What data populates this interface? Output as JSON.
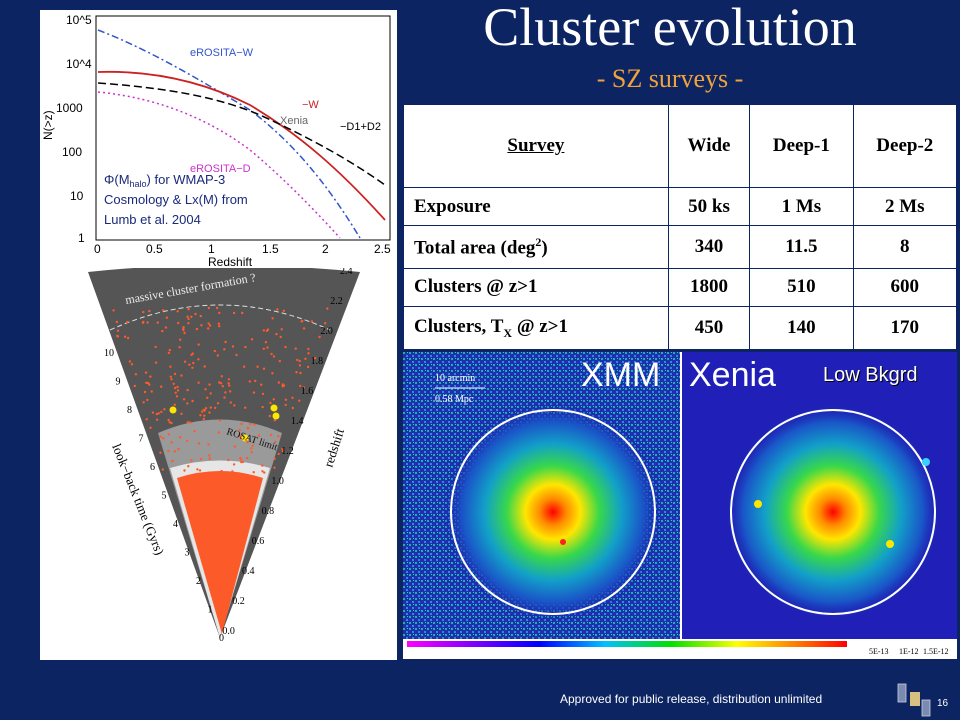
{
  "slide": {
    "title": "Cluster evolution",
    "subtitle": "- SZ surveys -",
    "footer": "Approved for public release, distribution unlimited",
    "page_number": "16"
  },
  "plot": {
    "xlabel": "Redshift",
    "ylabel": "N(>z)",
    "x_ticks": [
      "0",
      "0.5",
      "1",
      "1.5",
      "2",
      "2.5"
    ],
    "y_ticks": [
      "10^5",
      "10^4",
      "1000",
      "100",
      "10",
      "1"
    ],
    "curve_labels": [
      "eROSITA−W",
      "−W",
      "Xenia",
      "−D1+D2",
      "eROSITA−D"
    ],
    "note_line1": "Φ(M",
    "note_sub": "halo",
    "note_line1b": ") for WMAP-3",
    "note_line2": "Cosmology & Lx(M) from",
    "note_line3": "Lumb et al.  2004"
  },
  "cone": {
    "arc_text": "massive  cluster  formation ?",
    "rosat": "ROSAT limit",
    "left_axis_label": "look−back time (Gyrs)",
    "right_axis_label": "redshift",
    "left_ticks": [
      "10",
      "9",
      "8",
      "7",
      "6",
      "5",
      "4",
      "3",
      "2",
      "1",
      "0"
    ],
    "right_ticks": [
      "2.4",
      "2.2",
      "2.0",
      "1.8",
      "1.6",
      "1.4",
      "1.2",
      "1.0",
      "0.8",
      "0.6",
      "0.4",
      "0.2",
      "0.0"
    ]
  },
  "table": {
    "headers": [
      "Survey",
      "Wide",
      "Deep-1",
      "Deep-2"
    ],
    "rows": [
      {
        "label": "Exposure",
        "values": [
          "50 ks",
          "1 Ms",
          "2 Ms"
        ]
      },
      {
        "label_pre": "Total area (deg",
        "label_sup": "2",
        "label_post": ")",
        "values": [
          "340",
          "11.5",
          "8"
        ]
      },
      {
        "label": "Clusters @ z>1",
        "values": [
          "1800",
          "510",
          "600"
        ]
      },
      {
        "label_pre": "Clusters, T",
        "label_sub": "X",
        "label_post": " @ z>1",
        "values": [
          "450",
          "140",
          "170"
        ]
      }
    ]
  },
  "images": {
    "left_label": "XMM",
    "right_label": "Xenia",
    "corner_label": "Low Bkgrd",
    "scale1": "10 arcmin",
    "scale2": "0.58 Mpc",
    "colorbar_ticks": [
      "5E-13",
      "1E-12",
      "1.5E-12"
    ]
  }
}
